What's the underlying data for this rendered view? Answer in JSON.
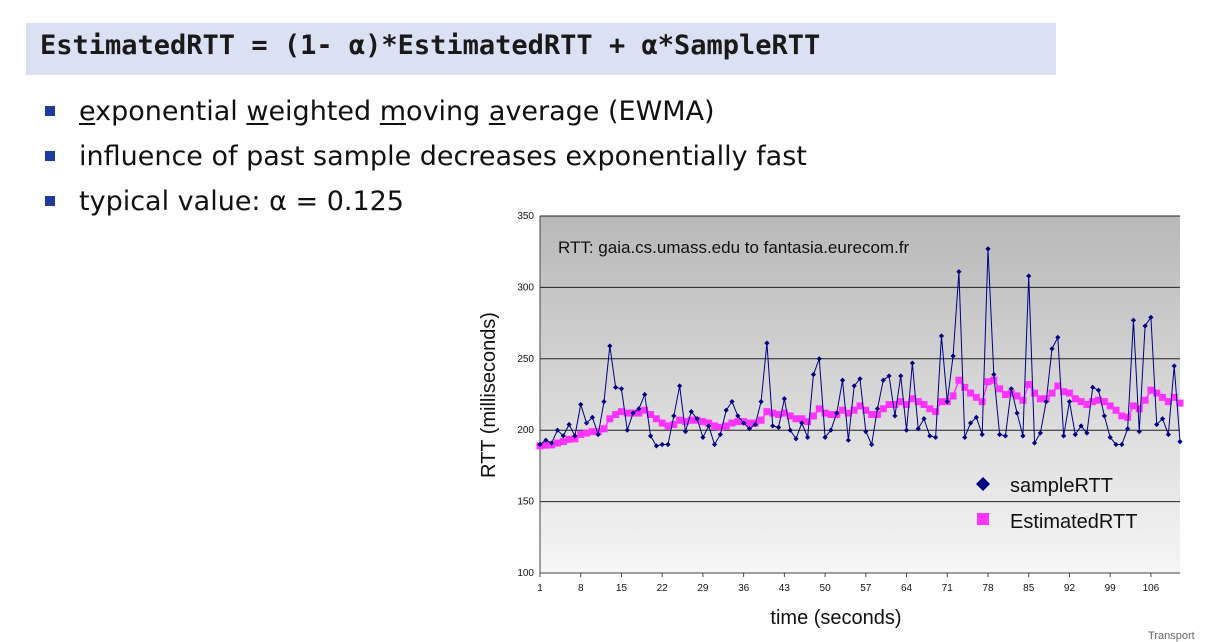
{
  "formula": {
    "text": "EstimatedRTT = (1- α)*EstimatedRTT + α*SampleRTT"
  },
  "bullets": [
    {
      "parts": [
        {
          "t": "e",
          "u": true
        },
        {
          "t": "xponential "
        },
        {
          "t": "w",
          "u": true
        },
        {
          "t": "eighted "
        },
        {
          "t": "m",
          "u": true
        },
        {
          "t": "oving "
        },
        {
          "t": "a",
          "u": true
        },
        {
          "t": "verage (EWMA)"
        }
      ]
    },
    {
      "parts": [
        {
          "t": "influence of past sample decreases exponentially fast"
        }
      ]
    },
    {
      "parts": [
        {
          "t": "typical value: α = 0.125"
        }
      ]
    }
  ],
  "footer_cut": "Transport",
  "colors": {
    "sample": "#000080",
    "estimated": "#ff33ff",
    "bullet": "#1f3a9e",
    "formula_bg": "#d9e1f2"
  },
  "chart_data": {
    "type": "line",
    "title": "RTT: gaia.cs.umass.edu to fantasia.eurecom.fr",
    "xlabel": "time (seconds)",
    "ylabel": "RTT (milliseconds)",
    "ylim": [
      100,
      350
    ],
    "yticks": [
      100,
      150,
      200,
      250,
      300,
      350
    ],
    "xlim": [
      1,
      111
    ],
    "xticks": [
      1,
      8,
      15,
      22,
      29,
      36,
      43,
      50,
      57,
      64,
      71,
      78,
      85,
      92,
      99,
      106
    ],
    "grid": true,
    "legend_position": "bottom-right",
    "series": [
      {
        "name": "sampleRTT",
        "marker": "diamond",
        "x": [
          1,
          2,
          3,
          4,
          5,
          6,
          7,
          8,
          9,
          10,
          11,
          12,
          13,
          14,
          15,
          16,
          17,
          18,
          19,
          20,
          21,
          22,
          23,
          24,
          25,
          26,
          27,
          28,
          29,
          30,
          31,
          32,
          33,
          34,
          35,
          36,
          37,
          38,
          39,
          40,
          41,
          42,
          43,
          44,
          45,
          46,
          47,
          48,
          49,
          50,
          51,
          52,
          53,
          54,
          55,
          56,
          57,
          58,
          59,
          60,
          61,
          62,
          63,
          64,
          65,
          66,
          67,
          68,
          69,
          70,
          71,
          72,
          73,
          74,
          75,
          76,
          77,
          78,
          79,
          80,
          81,
          82,
          83,
          84,
          85,
          86,
          87,
          88,
          89,
          90,
          91,
          92,
          93,
          94,
          95,
          96,
          97,
          98,
          99,
          100,
          101,
          102,
          103,
          104,
          105,
          106,
          107,
          108,
          109,
          110,
          111
        ],
        "y": [
          190,
          193,
          191,
          200,
          196,
          204,
          196,
          218,
          205,
          209,
          197,
          220,
          259,
          230,
          229,
          200,
          212,
          215,
          225,
          196,
          189,
          190,
          190,
          210,
          231,
          199,
          213,
          208,
          195,
          203,
          190,
          197,
          214,
          220,
          210,
          205,
          201,
          204,
          220,
          261,
          203,
          202,
          222,
          200,
          194,
          205,
          195,
          239,
          250,
          195,
          200,
          212,
          235,
          193,
          231,
          236,
          199,
          190,
          215,
          235,
          238,
          210,
          238,
          200,
          247,
          201,
          208,
          196,
          195,
          266,
          220,
          252,
          311,
          195,
          205,
          209,
          197,
          327,
          239,
          197,
          196,
          229,
          212,
          196,
          308,
          191,
          198,
          220,
          257,
          265,
          196,
          220,
          197,
          203,
          198,
          230,
          228,
          210,
          195,
          190,
          190,
          201,
          277,
          199,
          273,
          279,
          204,
          208,
          197,
          245,
          192
        ]
      },
      {
        "name": "EstimatedRTT",
        "marker": "square",
        "x": [
          1,
          2,
          3,
          4,
          5,
          6,
          7,
          8,
          9,
          10,
          11,
          12,
          13,
          14,
          15,
          16,
          17,
          18,
          19,
          20,
          21,
          22,
          23,
          24,
          25,
          26,
          27,
          28,
          29,
          30,
          31,
          32,
          33,
          34,
          35,
          36,
          37,
          38,
          39,
          40,
          41,
          42,
          43,
          44,
          45,
          46,
          47,
          48,
          49,
          50,
          51,
          52,
          53,
          54,
          55,
          56,
          57,
          58,
          59,
          60,
          61,
          62,
          63,
          64,
          65,
          66,
          67,
          68,
          69,
          70,
          71,
          72,
          73,
          74,
          75,
          76,
          77,
          78,
          79,
          80,
          81,
          82,
          83,
          84,
          85,
          86,
          87,
          88,
          89,
          90,
          91,
          92,
          93,
          94,
          95,
          96,
          97,
          98,
          99,
          100,
          101,
          102,
          103,
          104,
          105,
          106,
          107,
          108,
          109,
          110,
          111
        ],
        "y": [
          189,
          189.5,
          189.7,
          191,
          192,
          193.6,
          193.9,
          197,
          198,
          199,
          199,
          201,
          208,
          211,
          213,
          212,
          212,
          212,
          214,
          211,
          208,
          205,
          203,
          204,
          207,
          206,
          207,
          207,
          206,
          205,
          203,
          202,
          203,
          205,
          206,
          206,
          205,
          205,
          207,
          213,
          212,
          211,
          212,
          210,
          208,
          208,
          206,
          210,
          215,
          212,
          211,
          211,
          214,
          212,
          214,
          217,
          214,
          211,
          211,
          215,
          218,
          218,
          220,
          218,
          222,
          220,
          218,
          215,
          213,
          220,
          220,
          224,
          235,
          230,
          226,
          223,
          220,
          234,
          235,
          229,
          225,
          226,
          224,
          221,
          232,
          226,
          222,
          222,
          226,
          231,
          227,
          226,
          222,
          220,
          218,
          220,
          221,
          220,
          217,
          214,
          210,
          209,
          217,
          215,
          221,
          228,
          226,
          223,
          220,
          223,
          219
        ]
      }
    ]
  }
}
